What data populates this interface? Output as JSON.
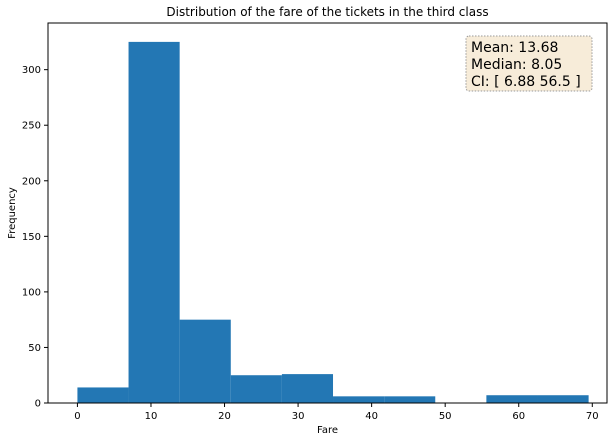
{
  "chart_data": {
    "type": "bar",
    "title": "Distribution of the fare of the tickets in the third class",
    "xlabel": "Fare",
    "ylabel": "Frequency",
    "xlim": [
      -4,
      72
    ],
    "ylim": [
      0,
      342
    ],
    "xticks": [
      0,
      10,
      20,
      30,
      40,
      50,
      60,
      70
    ],
    "yticks": [
      0,
      50,
      100,
      150,
      200,
      250,
      300
    ],
    "bins": [
      {
        "x0": 0,
        "x1": 6.95,
        "value": 14
      },
      {
        "x0": 6.95,
        "x1": 13.9,
        "value": 325
      },
      {
        "x0": 13.9,
        "x1": 20.85,
        "value": 75
      },
      {
        "x0": 20.85,
        "x1": 27.8,
        "value": 25
      },
      {
        "x0": 27.8,
        "x1": 34.75,
        "value": 26
      },
      {
        "x0": 34.75,
        "x1": 41.7,
        "value": 6
      },
      {
        "x0": 41.7,
        "x1": 48.65,
        "value": 6
      },
      {
        "x0": 48.65,
        "x1": 55.6,
        "value": 0
      },
      {
        "x0": 55.6,
        "x1": 62.55,
        "value": 7
      },
      {
        "x0": 62.55,
        "x1": 69.5,
        "value": 7
      }
    ],
    "bar_color": "#2377b4",
    "grid": false,
    "annotation": {
      "lines": [
        "Mean: 13.68",
        "Median: 8.05",
        "CI: [ 6.88 56.5 ]"
      ],
      "placement": "top-right",
      "background": "#f7ecd9",
      "border_color": "#9a9a9a"
    }
  }
}
